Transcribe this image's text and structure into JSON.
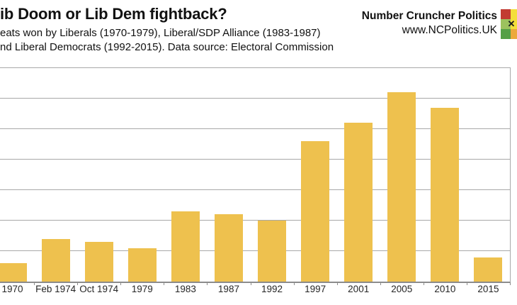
{
  "header": {
    "brand_name": "Number Cruncher Politics",
    "brand_url": "www.NCPolitics.UK"
  },
  "logo": {
    "x_mark": "✕",
    "cell_colors": [
      "#C23B32",
      "#F4DE39",
      "#9CC25E",
      "#F4DE39",
      "#55A046",
      "#ECA93B"
    ]
  },
  "chart_data": {
    "type": "bar",
    "title": "ib Doom or Lib Dem fightback?",
    "subtitle_lines": [
      "eats won by Liberals (1970-1979), Liberal/SDP Alliance (1983-1987)",
      "nd Liberal Democrats (1992-2015). Data source: Electoral Commission"
    ],
    "series_name": "Seats won",
    "categories": [
      "1970",
      "Feb 1974",
      "Oct 1974",
      "1979",
      "1983",
      "1987",
      "1992",
      "1997",
      "2001",
      "2005",
      "2010",
      "2015"
    ],
    "values": [
      6,
      14,
      13,
      11,
      23,
      22,
      20,
      46,
      52,
      62,
      57,
      8
    ],
    "xlabel": "",
    "ylabel": "",
    "ylim": [
      0,
      70
    ],
    "gridline_interval": 10,
    "grid": true,
    "legend": "none",
    "bar_color": "#EEC14E",
    "gridline_color": "#A8A8A8",
    "axis_color": "#8C8C8C",
    "label_color": "#262626"
  }
}
